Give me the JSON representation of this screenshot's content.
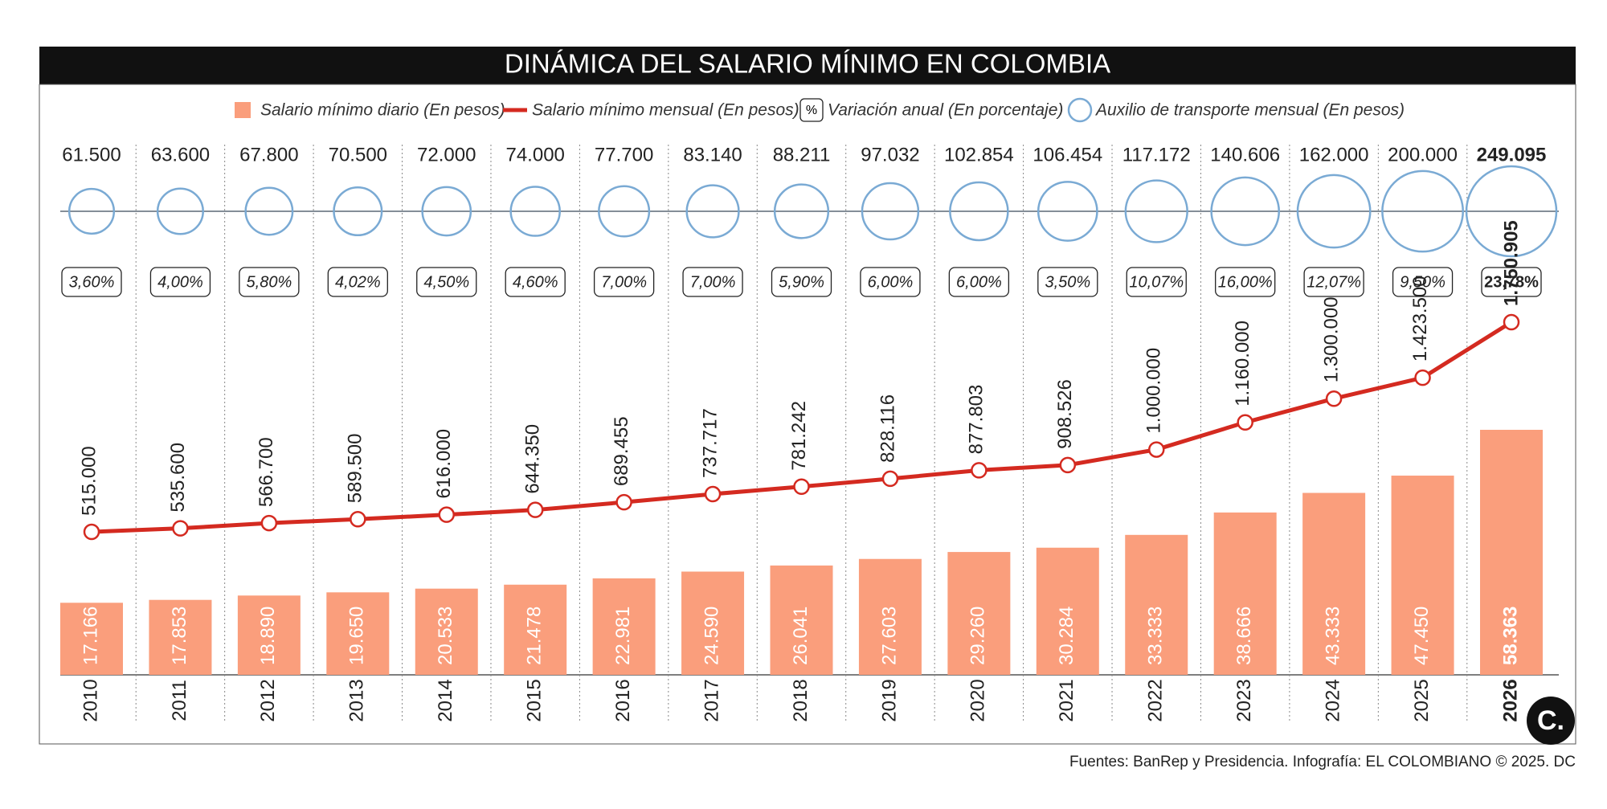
{
  "chart_data": {
    "type": "bar",
    "title": "DINÁMICA DEL SALARIO MÍNIMO EN COLOMBIA",
    "categories": [
      "2010",
      "2011",
      "2012",
      "2013",
      "2014",
      "2015",
      "2016",
      "2017",
      "2018",
      "2019",
      "2020",
      "2021",
      "2022",
      "2023",
      "2024",
      "2025",
      "2026"
    ],
    "series": [
      {
        "name": "Salario mínimo diario (En pesos)",
        "type": "bar",
        "color": "#fa9e7c",
        "values": [
          17166,
          17853,
          18890,
          19650,
          20533,
          21478,
          22981,
          24590,
          26041,
          27603,
          29260,
          30284,
          33333,
          38666,
          43333,
          47450,
          58363
        ],
        "value_labels": [
          "17.166",
          "17.853",
          "18.890",
          "19.650",
          "20.533",
          "21.478",
          "22.981",
          "24.590",
          "26.041",
          "27.603",
          "29.260",
          "30.284",
          "33.333",
          "38.666",
          "43.333",
          "47.450",
          "58.363"
        ]
      },
      {
        "name": "Salario mínimo mensual (En pesos)",
        "type": "line",
        "color": "#d42a20",
        "values": [
          515000,
          535600,
          566700,
          589500,
          616000,
          644350,
          689455,
          737717,
          781242,
          828116,
          877803,
          908526,
          1000000,
          1160000,
          1300000,
          1423500,
          1750905
        ],
        "value_labels": [
          "515.000",
          "535.600",
          "566.700",
          "589.500",
          "616.000",
          "644.350",
          "689.455",
          "737.717",
          "781.242",
          "828.116",
          "877.803",
          "908.526",
          "1.000.000",
          "1.160.000",
          "1.300.000",
          "1.423.500",
          "1.750.905"
        ]
      },
      {
        "name": "Variación anual (En porcentaje)",
        "type": "label",
        "symbol": "%",
        "color": "#222222",
        "values": [
          3.6,
          4.0,
          5.8,
          4.02,
          4.5,
          4.6,
          7.0,
          7.0,
          5.9,
          6.0,
          6.0,
          3.5,
          10.07,
          16.0,
          12.07,
          9.5,
          23.78
        ],
        "value_labels": [
          "3,60%",
          "4,00%",
          "5,80%",
          "4,02%",
          "4,50%",
          "4,60%",
          "7,00%",
          "7,00%",
          "5,90%",
          "6,00%",
          "6,00%",
          "3,50%",
          "10,07%",
          "16,00%",
          "12,07%",
          "9,50%",
          "23,78%"
        ]
      },
      {
        "name": "Auxilio de transporte mensual (En pesos)",
        "type": "bubble",
        "color": "#7aaad4",
        "values": [
          61500,
          63600,
          67800,
          70500,
          72000,
          74000,
          77700,
          83140,
          88211,
          97032,
          102854,
          106454,
          117172,
          140606,
          162000,
          200000,
          249095
        ],
        "value_labels": [
          "61.500",
          "63.600",
          "67.800",
          "70.500",
          "72.000",
          "74.000",
          "77.700",
          "83.140",
          "88.211",
          "97.032",
          "102.854",
          "106.454",
          "117.172",
          "140.606",
          "162.000",
          "200.000",
          "249.095"
        ]
      }
    ],
    "source": "Fuentes: BanRep y Presidencia. Infografía: EL COLOMBIANO © 2025. DC",
    "logo": "C."
  }
}
